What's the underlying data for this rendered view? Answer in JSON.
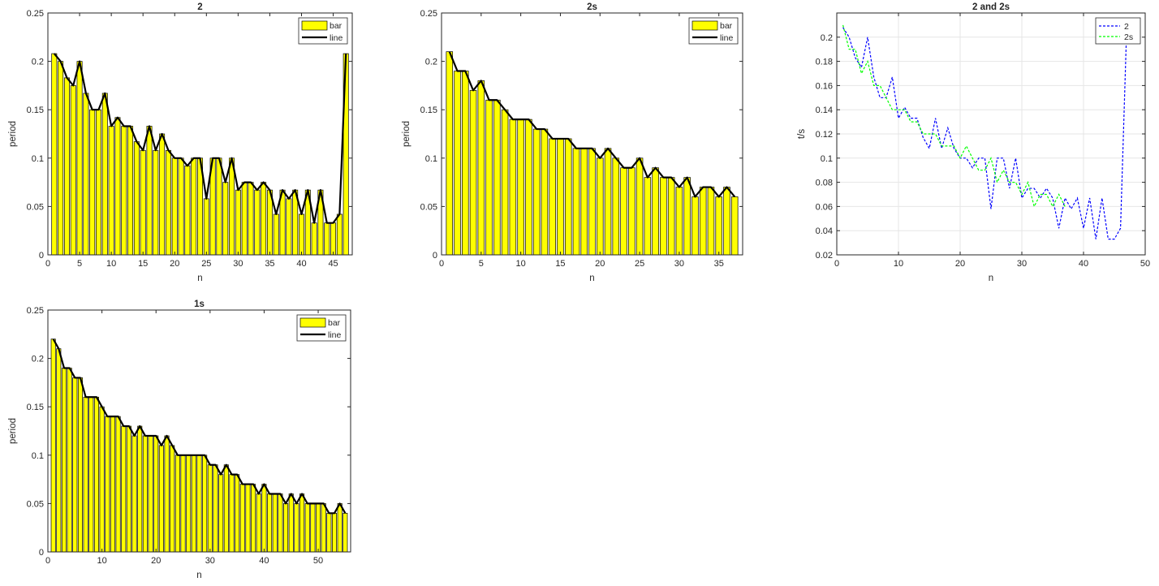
{
  "chart_data": [
    {
      "type": "bar",
      "title": "2",
      "xlabel": "n",
      "ylabel": "period",
      "xlim": [
        0,
        48
      ],
      "ylim": [
        0,
        0.25
      ],
      "xticks": [
        0,
        5,
        10,
        15,
        20,
        25,
        30,
        35,
        40,
        45
      ],
      "yticks": [
        0,
        0.05,
        0.1,
        0.15,
        0.2,
        0.25
      ],
      "grid": false,
      "legend": {
        "position": "top-right",
        "entries": [
          "bar",
          "line"
        ]
      },
      "colors": {
        "bar": "#ffff00",
        "line": "#000000"
      },
      "x": [
        1,
        2,
        3,
        4,
        5,
        6,
        7,
        8,
        9,
        10,
        11,
        12,
        13,
        14,
        15,
        16,
        17,
        18,
        19,
        20,
        21,
        22,
        23,
        24,
        25,
        26,
        27,
        28,
        29,
        30,
        31,
        32,
        33,
        34,
        35,
        36,
        37,
        38,
        39,
        40,
        41,
        42,
        43,
        44,
        45,
        46,
        47
      ],
      "values": [
        0.208,
        0.2,
        0.183,
        0.175,
        0.2,
        0.167,
        0.15,
        0.15,
        0.167,
        0.133,
        0.142,
        0.133,
        0.133,
        0.117,
        0.108,
        0.133,
        0.108,
        0.125,
        0.108,
        0.1,
        0.1,
        0.092,
        0.1,
        0.1,
        0.058,
        0.1,
        0.1,
        0.075,
        0.1,
        0.067,
        0.075,
        0.075,
        0.067,
        0.075,
        0.067,
        0.042,
        0.067,
        0.058,
        0.067,
        0.042,
        0.067,
        0.033,
        0.067,
        0.033,
        0.033,
        0.042,
        0.208
      ]
    },
    {
      "type": "bar",
      "title": "2s",
      "xlabel": "n",
      "ylabel": "period",
      "xlim": [
        0,
        38
      ],
      "ylim": [
        0,
        0.25
      ],
      "xticks": [
        0,
        5,
        10,
        15,
        20,
        25,
        30,
        35
      ],
      "yticks": [
        0,
        0.05,
        0.1,
        0.15,
        0.2,
        0.25
      ],
      "grid": false,
      "legend": {
        "position": "top-right",
        "entries": [
          "bar",
          "line"
        ]
      },
      "colors": {
        "bar": "#ffff00",
        "line": "#000000"
      },
      "x": [
        1,
        2,
        3,
        4,
        5,
        6,
        7,
        8,
        9,
        10,
        11,
        12,
        13,
        14,
        15,
        16,
        17,
        18,
        19,
        20,
        21,
        22,
        23,
        24,
        25,
        26,
        27,
        28,
        29,
        30,
        31,
        32,
        33,
        34,
        35,
        36,
        37
      ],
      "values": [
        0.21,
        0.19,
        0.19,
        0.17,
        0.18,
        0.16,
        0.16,
        0.15,
        0.14,
        0.14,
        0.14,
        0.13,
        0.13,
        0.12,
        0.12,
        0.12,
        0.11,
        0.11,
        0.11,
        0.1,
        0.11,
        0.1,
        0.09,
        0.09,
        0.1,
        0.08,
        0.09,
        0.08,
        0.08,
        0.07,
        0.08,
        0.06,
        0.07,
        0.07,
        0.06,
        0.07,
        0.06
      ]
    },
    {
      "type": "line",
      "title": "2 and 2s",
      "xlabel": "n",
      "ylabel": "t/s",
      "xlim": [
        0,
        50
      ],
      "ylim": [
        0.02,
        0.22
      ],
      "xticks": [
        0,
        10,
        20,
        30,
        40,
        50
      ],
      "yticks": [
        0.02,
        0.04,
        0.06,
        0.08,
        0.1,
        0.12,
        0.14,
        0.16,
        0.18,
        0.2
      ],
      "grid": true,
      "legend": {
        "position": "top-right"
      },
      "series": [
        {
          "name": "2",
          "color": "#0000ff",
          "style": "dashed",
          "source": 0
        },
        {
          "name": "2s",
          "color": "#00ff00",
          "style": "dashed",
          "source": 1
        }
      ]
    },
    {
      "type": "bar",
      "title": "1s",
      "xlabel": "n",
      "ylabel": "period",
      "xlim": [
        0,
        56
      ],
      "ylim": [
        0,
        0.25
      ],
      "xticks": [
        0,
        10,
        20,
        30,
        40,
        50
      ],
      "yticks": [
        0,
        0.05,
        0.1,
        0.15,
        0.2,
        0.25
      ],
      "grid": false,
      "legend": {
        "position": "top-right",
        "entries": [
          "bar",
          "line"
        ]
      },
      "colors": {
        "bar": "#ffff00",
        "line": "#000000"
      },
      "x": [
        1,
        2,
        3,
        4,
        5,
        6,
        7,
        8,
        9,
        10,
        11,
        12,
        13,
        14,
        15,
        16,
        17,
        18,
        19,
        20,
        21,
        22,
        23,
        24,
        25,
        26,
        27,
        28,
        29,
        30,
        31,
        32,
        33,
        34,
        35,
        36,
        37,
        38,
        39,
        40,
        41,
        42,
        43,
        44,
        45,
        46,
        47,
        48,
        49,
        50,
        51,
        52,
        53,
        54,
        55
      ],
      "values": [
        0.22,
        0.21,
        0.19,
        0.19,
        0.18,
        0.18,
        0.16,
        0.16,
        0.16,
        0.15,
        0.14,
        0.14,
        0.14,
        0.13,
        0.13,
        0.12,
        0.13,
        0.12,
        0.12,
        0.12,
        0.11,
        0.12,
        0.11,
        0.1,
        0.1,
        0.1,
        0.1,
        0.1,
        0.1,
        0.09,
        0.09,
        0.08,
        0.09,
        0.08,
        0.08,
        0.07,
        0.07,
        0.07,
        0.06,
        0.07,
        0.06,
        0.06,
        0.06,
        0.05,
        0.06,
        0.05,
        0.06,
        0.05,
        0.05,
        0.05,
        0.05,
        0.04,
        0.04,
        0.05,
        0.04
      ]
    }
  ]
}
